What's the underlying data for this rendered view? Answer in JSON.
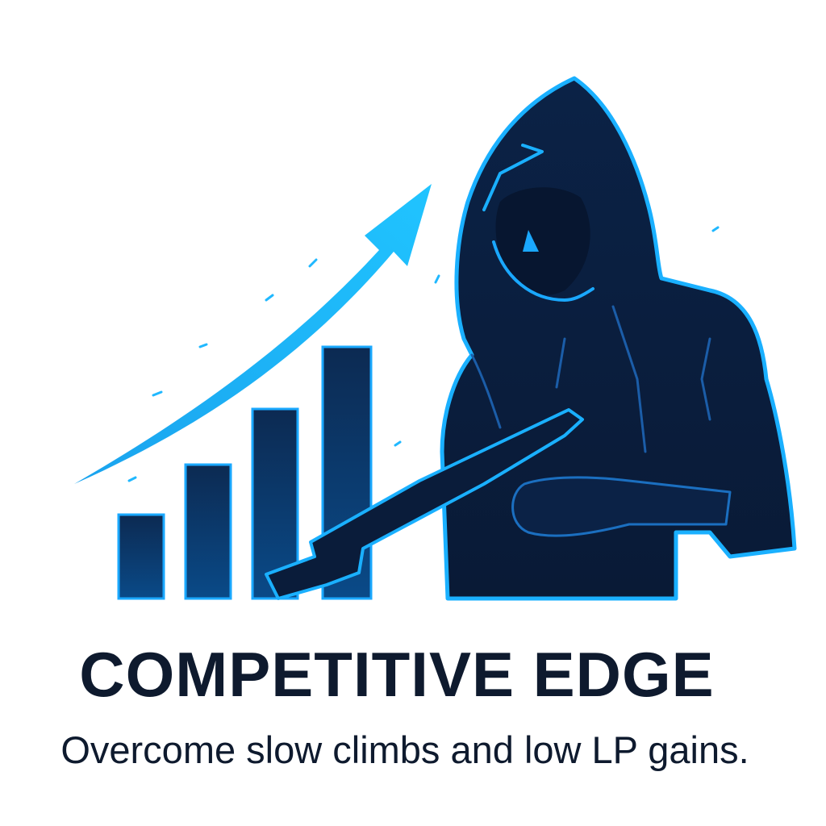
{
  "branding": {
    "title": "COMPETITIVE EDGE",
    "tagline": "Overcome slow climbs and low LP gains."
  },
  "illustration": {
    "elements": [
      "growth-arrow-icon",
      "bar-chart-icon",
      "hooded-figure-icon",
      "rifle-icon"
    ],
    "bar_levels": [
      1,
      2,
      3,
      4
    ]
  },
  "colors": {
    "background": "#ffffff",
    "text": "#0e1a2e",
    "accent": "#18b4ff",
    "silhouette": "#0b2040"
  }
}
